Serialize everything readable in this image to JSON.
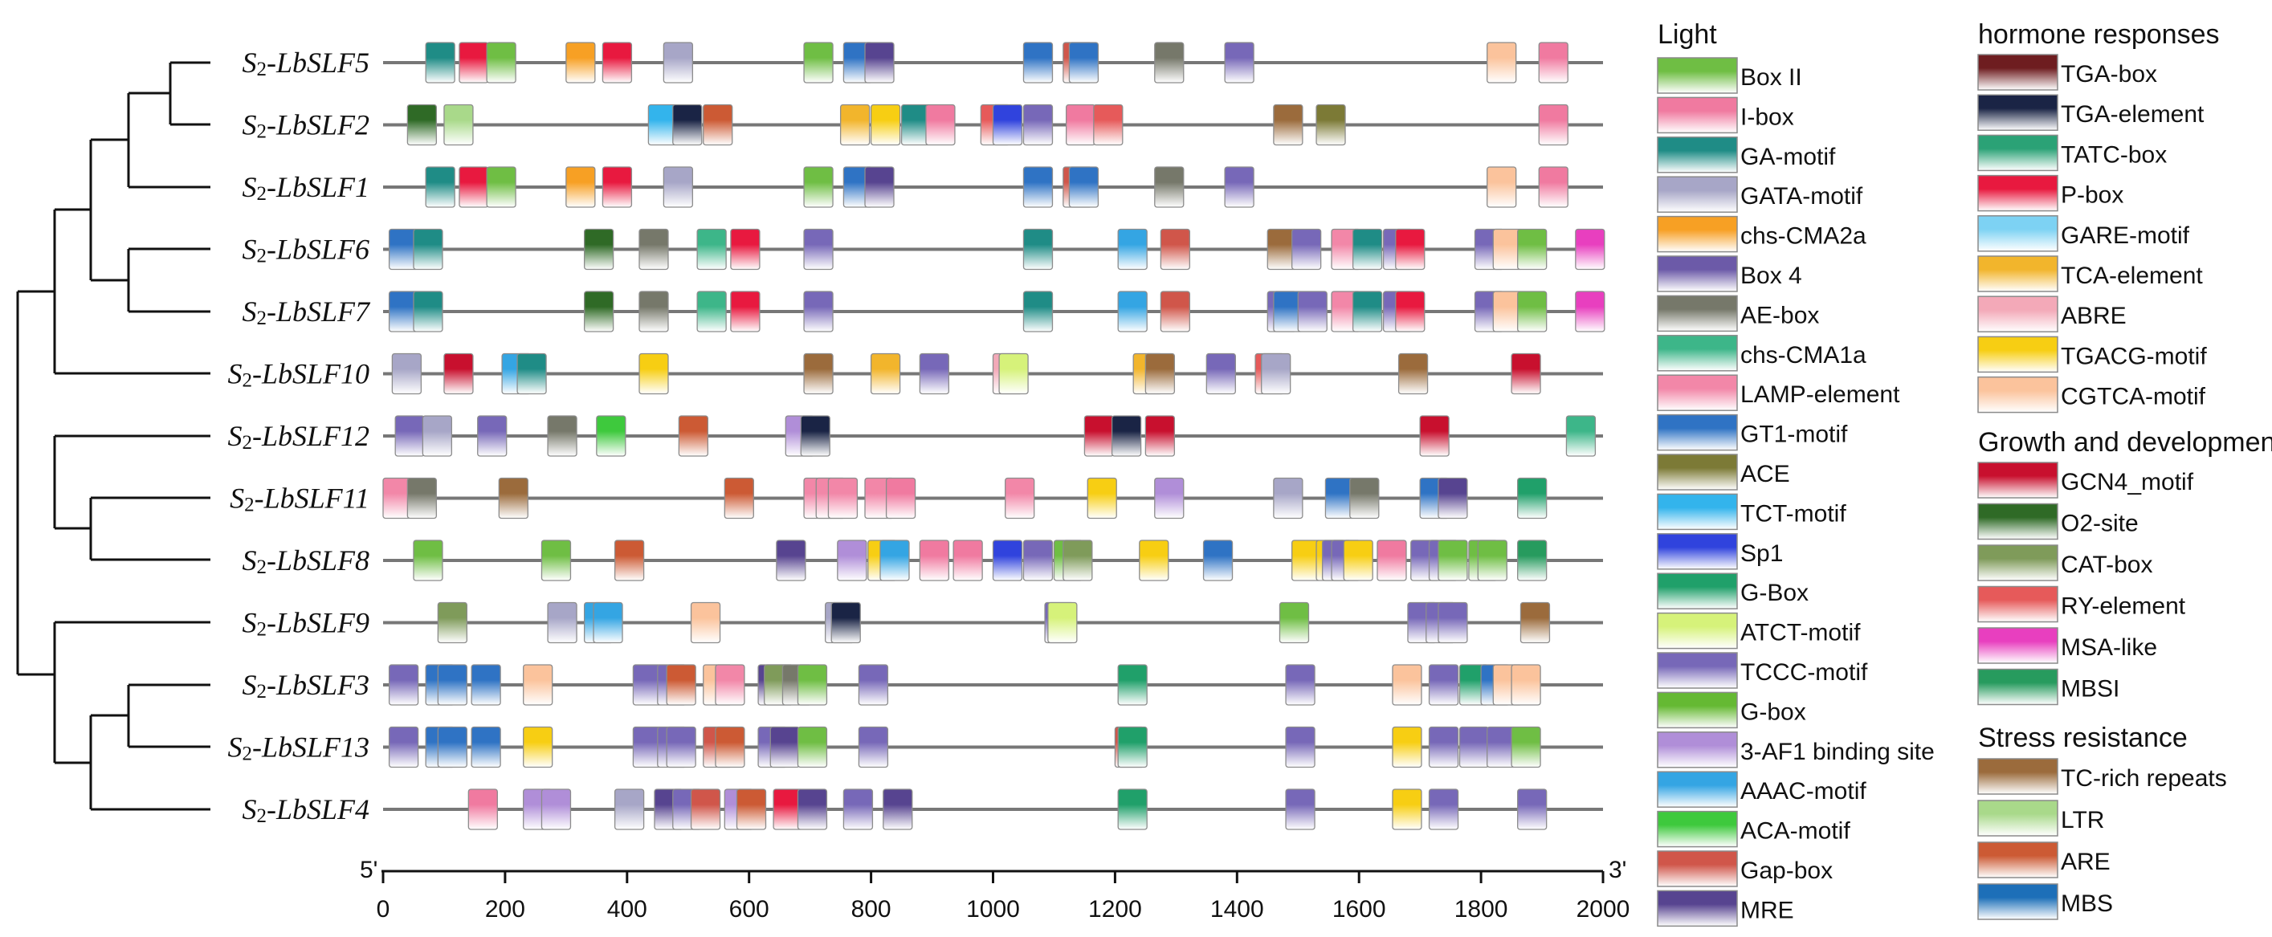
{
  "axis": {
    "start_label": "5'",
    "end_label": "3'",
    "min": 0,
    "max": 2000,
    "ticks": [
      0,
      200,
      400,
      600,
      800,
      1000,
      1200,
      1400,
      1600,
      1800,
      2000
    ]
  },
  "genes": [
    {
      "prefix": "S",
      "sub": "2",
      "name": "-LbSLF5",
      "elements": [
        [
          "GA-motif",
          70
        ],
        [
          "P-box",
          125
        ],
        [
          "Box II",
          170
        ],
        [
          "chs-CMA2a",
          300
        ],
        [
          "P-box",
          360
        ],
        [
          "GATA-motif",
          460
        ],
        [
          "Box II",
          690
        ],
        [
          "GT1-motif",
          755
        ],
        [
          "MRE",
          790
        ],
        [
          "GT1-motif",
          1050
        ],
        [
          "Gap-box",
          1115
        ],
        [
          "GT1-motif",
          1125
        ],
        [
          "AE-box",
          1265
        ],
        [
          "TCCC-motif",
          1380
        ],
        [
          "CGTCA-motif",
          1810
        ],
        [
          "I-box",
          1895
        ]
      ]
    },
    {
      "prefix": "S",
      "sub": "2",
      "name": "-LbSLF2",
      "elements": [
        [
          "O2-site",
          40
        ],
        [
          "LTR",
          100
        ],
        [
          "TCT-motif",
          435
        ],
        [
          "TGA-element",
          475
        ],
        [
          "ARE",
          525
        ],
        [
          "TCA-element",
          750
        ],
        [
          "TGACG-motif",
          800
        ],
        [
          "GA-motif",
          850
        ],
        [
          "I-box",
          890
        ],
        [
          "RY-element",
          980
        ],
        [
          "Sp1",
          1000
        ],
        [
          "TCCC-motif",
          1050
        ],
        [
          "I-box",
          1120
        ],
        [
          "RY-element",
          1165
        ],
        [
          "TC-rich repeats",
          1460
        ],
        [
          "ACE",
          1530
        ],
        [
          "I-box",
          1895
        ]
      ]
    },
    {
      "prefix": "S",
      "sub": "2",
      "name": "-LbSLF1",
      "elements": [
        [
          "GA-motif",
          70
        ],
        [
          "P-box",
          125
        ],
        [
          "Box II",
          170
        ],
        [
          "chs-CMA2a",
          300
        ],
        [
          "P-box",
          360
        ],
        [
          "GATA-motif",
          460
        ],
        [
          "Box II",
          690
        ],
        [
          "GT1-motif",
          755
        ],
        [
          "MRE",
          790
        ],
        [
          "GT1-motif",
          1050
        ],
        [
          "Gap-box",
          1115
        ],
        [
          "GT1-motif",
          1125
        ],
        [
          "AE-box",
          1265
        ],
        [
          "TCCC-motif",
          1380
        ],
        [
          "CGTCA-motif",
          1810
        ],
        [
          "I-box",
          1895
        ]
      ]
    },
    {
      "prefix": "S",
      "sub": "2",
      "name": "-LbSLF6",
      "elements": [
        [
          "GT1-motif",
          10
        ],
        [
          "GA-motif",
          50
        ],
        [
          "O2-site",
          330
        ],
        [
          "AE-box",
          420
        ],
        [
          "chs-CMA1a",
          515
        ],
        [
          "P-box",
          570
        ],
        [
          "TCCC-motif",
          690
        ],
        [
          "GA-motif",
          1050
        ],
        [
          "AAAC-motif",
          1205
        ],
        [
          "Gap-box",
          1275
        ],
        [
          "TC-rich repeats",
          1450
        ],
        [
          "TCCC-motif",
          1490
        ],
        [
          "LAMP-element",
          1555
        ],
        [
          "GA-motif",
          1590
        ],
        [
          "TCCC-motif",
          1640
        ],
        [
          "P-box",
          1660
        ],
        [
          "TCCC-motif",
          1790
        ],
        [
          "CGTCA-motif",
          1820
        ],
        [
          "Box II",
          1860
        ],
        [
          "MSA-like",
          1955
        ]
      ]
    },
    {
      "prefix": "S",
      "sub": "2",
      "name": "-LbSLF7",
      "elements": [
        [
          "GT1-motif",
          10
        ],
        [
          "GA-motif",
          50
        ],
        [
          "O2-site",
          330
        ],
        [
          "AE-box",
          420
        ],
        [
          "chs-CMA1a",
          515
        ],
        [
          "P-box",
          570
        ],
        [
          "TCCC-motif",
          690
        ],
        [
          "GA-motif",
          1050
        ],
        [
          "AAAC-motif",
          1205
        ],
        [
          "Gap-box",
          1275
        ],
        [
          "TCCC-motif",
          1450
        ],
        [
          "GT1-motif",
          1460
        ],
        [
          "TCCC-motif",
          1500
        ],
        [
          "LAMP-element",
          1555
        ],
        [
          "GA-motif",
          1590
        ],
        [
          "TCCC-motif",
          1640
        ],
        [
          "P-box",
          1660
        ],
        [
          "TCCC-motif",
          1790
        ],
        [
          "CGTCA-motif",
          1820
        ],
        [
          "Box II",
          1860
        ],
        [
          "MSA-like",
          1955
        ]
      ]
    },
    {
      "prefix": "S",
      "sub": "2",
      "name": "-LbSLF10",
      "elements": [
        [
          "GATA-motif",
          15
        ],
        [
          "GCN4_motif",
          100
        ],
        [
          "AAAC-motif",
          195
        ],
        [
          "GA-motif",
          220
        ],
        [
          "TGACG-motif",
          420
        ],
        [
          "TC-rich repeats",
          690
        ],
        [
          "TCA-element",
          800
        ],
        [
          "TCCC-motif",
          880
        ],
        [
          "ABRE",
          1000
        ],
        [
          "ATCT-motif",
          1010
        ],
        [
          "TCA-element",
          1230
        ],
        [
          "TC-rich repeats",
          1250
        ],
        [
          "TCCC-motif",
          1350
        ],
        [
          "RY-element",
          1430
        ],
        [
          "GATA-motif",
          1440
        ],
        [
          "TC-rich repeats",
          1665
        ],
        [
          "GCN4_motif",
          1850
        ]
      ]
    },
    {
      "prefix": "S",
      "sub": "2",
      "name": "-LbSLF12",
      "elements": [
        [
          "TCCC-motif",
          20
        ],
        [
          "GATA-motif",
          65
        ],
        [
          "TCCC-motif",
          155
        ],
        [
          "AE-box",
          270
        ],
        [
          "ACA-motif",
          350
        ],
        [
          "ARE",
          485
        ],
        [
          "3-AF1 binding site",
          660
        ],
        [
          "TGA-element",
          685
        ],
        [
          "GCN4_motif",
          1150
        ],
        [
          "TGA-element",
          1195
        ],
        [
          "GCN4_motif",
          1250
        ],
        [
          "GCN4_motif",
          1700
        ],
        [
          "chs-CMA1a",
          1940
        ]
      ]
    },
    {
      "prefix": "S",
      "sub": "2",
      "name": "-LbSLF11",
      "elements": [
        [
          "LAMP-element",
          0
        ],
        [
          "AE-box",
          40
        ],
        [
          "TC-rich repeats",
          190
        ],
        [
          "ARE",
          560
        ],
        [
          "LAMP-element",
          690
        ],
        [
          "LAMP-element",
          710
        ],
        [
          "LAMP-element",
          730
        ],
        [
          "LAMP-element",
          790
        ],
        [
          "I-box",
          825
        ],
        [
          "LAMP-element",
          1020
        ],
        [
          "TGACG-motif",
          1155
        ],
        [
          "3-AF1 binding site",
          1265
        ],
        [
          "GATA-motif",
          1460
        ],
        [
          "GT1-motif",
          1545
        ],
        [
          "AE-box",
          1585
        ],
        [
          "GT1-motif",
          1700
        ],
        [
          "MRE",
          1730
        ],
        [
          "G-Box",
          1860
        ]
      ]
    },
    {
      "prefix": "S",
      "sub": "2",
      "name": "-LbSLF8",
      "elements": [
        [
          "Box II",
          50
        ],
        [
          "Box II",
          260
        ],
        [
          "ARE",
          380
        ],
        [
          "MRE",
          645
        ],
        [
          "3-AF1 binding site",
          745
        ],
        [
          "TGACG-motif",
          795
        ],
        [
          "AAAC-motif",
          815
        ],
        [
          "I-box",
          880
        ],
        [
          "I-box",
          935
        ],
        [
          "Sp1",
          1000
        ],
        [
          "TCCC-motif",
          1050
        ],
        [
          "Box II",
          1100
        ],
        [
          "CAT-box",
          1115
        ],
        [
          "TGACG-motif",
          1240
        ],
        [
          "GT1-motif",
          1345
        ],
        [
          "TGACG-motif",
          1490
        ],
        [
          "TGACG-motif",
          1530
        ],
        [
          "TCCC-motif",
          1540
        ],
        [
          "TCCC-motif",
          1555
        ],
        [
          "TGACG-motif",
          1575
        ],
        [
          "I-box",
          1630
        ],
        [
          "TCCC-motif",
          1685
        ],
        [
          "TCCC-motif",
          1715
        ],
        [
          "Box II",
          1730
        ],
        [
          "Box II",
          1780
        ],
        [
          "Box II",
          1795
        ],
        [
          "MBSI",
          1860
        ]
      ]
    },
    {
      "prefix": "S",
      "sub": "2",
      "name": "-LbSLF9",
      "elements": [
        [
          "CAT-box",
          90
        ],
        [
          "GATA-motif",
          270
        ],
        [
          "AAAC-motif",
          330
        ],
        [
          "AAAC-motif",
          345
        ],
        [
          "CGTCA-motif",
          505
        ],
        [
          "GATA-motif",
          725
        ],
        [
          "TGA-element",
          735
        ],
        [
          "TCCC-motif",
          1085
        ],
        [
          "ATCT-motif",
          1090
        ],
        [
          "Box II",
          1470
        ],
        [
          "TCCC-motif",
          1680
        ],
        [
          "TCCC-motif",
          1710
        ],
        [
          "TCCC-motif",
          1730
        ],
        [
          "TC-rich repeats",
          1865
        ]
      ]
    },
    {
      "prefix": "S",
      "sub": "2",
      "name": "-LbSLF3",
      "elements": [
        [
          "TCCC-motif",
          10
        ],
        [
          "GT1-motif",
          70
        ],
        [
          "GT1-motif",
          90
        ],
        [
          "GT1-motif",
          145
        ],
        [
          "CGTCA-motif",
          230
        ],
        [
          "TCCC-motif",
          410
        ],
        [
          "TCCC-motif",
          450
        ],
        [
          "ARE",
          465
        ],
        [
          "CGTCA-motif",
          525
        ],
        [
          "LAMP-element",
          545
        ],
        [
          "MRE",
          615
        ],
        [
          "CAT-box",
          625
        ],
        [
          "AE-box",
          655
        ],
        [
          "Box II",
          680
        ],
        [
          "TCCC-motif",
          780
        ],
        [
          "G-Box",
          1205
        ],
        [
          "TCCC-motif",
          1480
        ],
        [
          "CGTCA-motif",
          1655
        ],
        [
          "TCCC-motif",
          1715
        ],
        [
          "G-Box",
          1765
        ],
        [
          "GT1-motif",
          1800
        ],
        [
          "CGTCA-motif",
          1820
        ],
        [
          "CGTCA-motif",
          1850
        ]
      ]
    },
    {
      "prefix": "S",
      "sub": "2",
      "name": "-LbSLF13",
      "elements": [
        [
          "TCCC-motif",
          10
        ],
        [
          "GT1-motif",
          70
        ],
        [
          "GT1-motif",
          90
        ],
        [
          "GT1-motif",
          145
        ],
        [
          "TGACG-motif",
          230
        ],
        [
          "TCCC-motif",
          410
        ],
        [
          "TCCC-motif",
          450
        ],
        [
          "TCCC-motif",
          465
        ],
        [
          "Gap-box",
          525
        ],
        [
          "ARE",
          545
        ],
        [
          "TCCC-motif",
          615
        ],
        [
          "MRE",
          635
        ],
        [
          "Box II",
          680
        ],
        [
          "TCCC-motif",
          780
        ],
        [
          "Gap-box",
          1200
        ],
        [
          "G-Box",
          1205
        ],
        [
          "TCCC-motif",
          1480
        ],
        [
          "TGACG-motif",
          1655
        ],
        [
          "TCCC-motif",
          1715
        ],
        [
          "TCCC-motif",
          1765
        ],
        [
          "TCCC-motif",
          1810
        ],
        [
          "Box II",
          1850
        ]
      ]
    },
    {
      "prefix": "S",
      "sub": "2",
      "name": "-LbSLF4",
      "elements": [
        [
          "I-box",
          140
        ],
        [
          "3-AF1 binding site",
          230
        ],
        [
          "3-AF1 binding site",
          260
        ],
        [
          "GATA-motif",
          380
        ],
        [
          "MRE",
          445
        ],
        [
          "TCCC-motif",
          475
        ],
        [
          "Gap-box",
          505
        ],
        [
          "3-AF1 binding site",
          560
        ],
        [
          "ARE",
          580
        ],
        [
          "P-box",
          640
        ],
        [
          "MRE",
          680
        ],
        [
          "TCCC-motif",
          755
        ],
        [
          "MRE",
          820
        ],
        [
          "G-Box",
          1205
        ],
        [
          "TCCC-motif",
          1480
        ],
        [
          "TGACG-motif",
          1655
        ],
        [
          "TCCC-motif",
          1715
        ],
        [
          "TCCC-motif",
          1860
        ]
      ]
    }
  ],
  "legend_col1": {
    "heading": "Light",
    "items": [
      {
        "label": "Box II",
        "top": "#6fbe44",
        "bot": "#ffffff"
      },
      {
        "label": "I-box",
        "top": "#f07aa0",
        "bot": "#ffffff"
      },
      {
        "label": "GA-motif",
        "top": "#1f8c86",
        "bot": "#ffffff"
      },
      {
        "label": "GATA-motif",
        "top": "#a7a6c7",
        "bot": "#ffffff"
      },
      {
        "label": "chs-CMA2a",
        "top": "#f7a024",
        "bot": "#ffffff"
      },
      {
        "label": "Box 4",
        "top": "#6c5aa8",
        "bot": "#ffffff"
      },
      {
        "label": "AE-box",
        "top": "#76786a",
        "bot": "#ffffff"
      },
      {
        "label": "chs-CMA1a",
        "top": "#3db689",
        "bot": "#ffffff"
      },
      {
        "label": "LAMP-element",
        "top": "#f287a8",
        "bot": "#ffffff"
      },
      {
        "label": "GT1-motif",
        "top": "#2f73c4",
        "bot": "#ffffff"
      },
      {
        "label": "ACE",
        "top": "#7c7a36",
        "bot": "#ffffff"
      },
      {
        "label": "TCT-motif",
        "top": "#33b4ec",
        "bot": "#ffffff"
      },
      {
        "label": "Sp1",
        "top": "#3043dd",
        "bot": "#ffffff"
      },
      {
        "label": "G-Box",
        "top": "#20a06a",
        "bot": "#ffffff"
      },
      {
        "label": "ATCT-motif",
        "top": "#d6f27a",
        "bot": "#ffffff"
      },
      {
        "label": "TCCC-motif",
        "top": "#7768b8",
        "bot": "#ffffff"
      },
      {
        "label": "G-box",
        "top": "#65b933",
        "bot": "#ffffff"
      },
      {
        "label": "3-AF1 binding site",
        "top": "#b08ed8",
        "bot": "#ffffff"
      },
      {
        "label": "AAAC-motif",
        "top": "#34a5e3",
        "bot": "#ffffff"
      },
      {
        "label": "ACA-motif",
        "top": "#3ec93d",
        "bot": "#ffffff"
      },
      {
        "label": "Gap-box",
        "top": "#d0564a",
        "bot": "#ffffff"
      },
      {
        "label": "MRE",
        "top": "#574490",
        "bot": "#ffffff"
      }
    ]
  },
  "legend_col2": {
    "heading": "hormone responses",
    "items": [
      {
        "label": "TGA-box",
        "top": "#6e1d20",
        "bot": "#ffffff"
      },
      {
        "label": "TGA-element",
        "top": "#1a2445",
        "bot": "#ffffff"
      },
      {
        "label": "TATC-box",
        "top": "#2ba276",
        "bot": "#ffffff"
      },
      {
        "label": "P-box",
        "top": "#e8193f",
        "bot": "#ffffff"
      },
      {
        "label": "GARE-motif",
        "top": "#7dd2f3",
        "bot": "#ffffff"
      },
      {
        "label": "TCA-element",
        "top": "#f2b52c",
        "bot": "#ffffff"
      },
      {
        "label": "ABRE",
        "top": "#f3a9b8",
        "bot": "#ffffff"
      },
      {
        "label": "TGACG-motif",
        "top": "#f7ce13",
        "bot": "#ffffff"
      },
      {
        "label": "CGTCA-motif",
        "top": "#fbc39c",
        "bot": "#ffffff"
      }
    ]
  },
  "legend_col3": {
    "heading": "Growth and development",
    "items": [
      {
        "label": "GCN4_motif",
        "top": "#c8102e",
        "bot": "#ffffff"
      },
      {
        "label": "O2-site",
        "top": "#2f6a26",
        "bot": "#ffffff"
      },
      {
        "label": "CAT-box",
        "top": "#7f9b5a",
        "bot": "#ffffff"
      },
      {
        "label": "RY-element",
        "top": "#e65a5a",
        "bot": "#ffffff"
      },
      {
        "label": "MSA-like",
        "top": "#e83fbf",
        "bot": "#ffffff"
      },
      {
        "label": "MBSI",
        "top": "#279b5e",
        "bot": "#ffffff"
      }
    ]
  },
  "legend_col4": {
    "heading": "Stress resistance",
    "items": [
      {
        "label": "TC-rich repeats",
        "top": "#9b6b3c",
        "bot": "#ffffff"
      },
      {
        "label": "LTR",
        "top": "#a9d98a",
        "bot": "#ffffff"
      },
      {
        "label": "ARE",
        "top": "#cc5a34",
        "bot": "#ffffff"
      },
      {
        "label": "MBS",
        "top": "#1d6fb8",
        "bot": "#ffffff"
      }
    ]
  }
}
